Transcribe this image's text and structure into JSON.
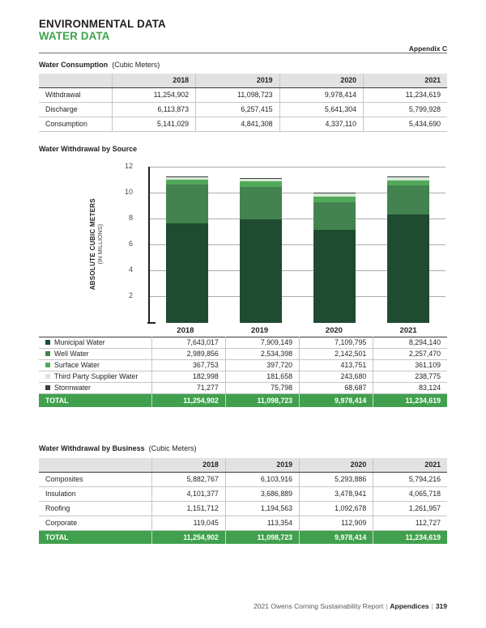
{
  "header": {
    "line1": "ENVIRONMENTAL DATA",
    "line2": "WATER DATA",
    "appendix": "Appendix C"
  },
  "colors": {
    "accent_green": "#3fa24c",
    "total_row_green": "#41a04e",
    "header_row_gray": "#e2e2e2",
    "grid_gray": "#aaadb0",
    "text_dark": "#231f20"
  },
  "consumption": {
    "title": "Water Consumption",
    "unit": "(Cubic Meters)",
    "years": [
      "2018",
      "2019",
      "2020",
      "2021"
    ],
    "rows": [
      {
        "label": "Withdrawal",
        "values": [
          "11,254,902",
          "11,098,723",
          "9,978,414",
          "11,234,619"
        ]
      },
      {
        "label": "Discharge",
        "values": [
          "6,113,873",
          "6,257,415",
          "5,641,304",
          "5,799,928"
        ]
      },
      {
        "label": "Consumption",
        "values": [
          "5,141,029",
          "4,841,308",
          "4,337,110",
          "5,434,690"
        ]
      }
    ]
  },
  "source": {
    "title": "Water Withdrawal by Source",
    "rows": [
      {
        "label": "Municipal Water",
        "values": [
          "7,643,017",
          "7,909,149",
          "7,109,795",
          "8,294,140"
        ]
      },
      {
        "label": "Well Water",
        "values": [
          "2,989,856",
          "2,534,398",
          "2,142,501",
          "2,257,470"
        ]
      },
      {
        "label": "Surface Water",
        "values": [
          "367,753",
          "397,720",
          "413,751",
          "361,109"
        ]
      },
      {
        "label": "Third Party Supplier Water",
        "values": [
          "182,998",
          "181,658",
          "243,680",
          "238,775"
        ]
      },
      {
        "label": "Stormwater",
        "values": [
          "71,277",
          "75,798",
          "68,687",
          "83,124"
        ]
      }
    ],
    "total": {
      "label": "TOTAL",
      "values": [
        "11,254,902",
        "11,098,723",
        "9,978,414",
        "11,234,619"
      ]
    }
  },
  "chart_data": {
    "type": "bar",
    "stacked": true,
    "title": "Water Withdrawal by Source",
    "categories": [
      "2018",
      "2019",
      "2020",
      "2021"
    ],
    "series": [
      {
        "name": "Municipal Water",
        "color": "#1f4c31",
        "values": [
          7643017,
          7909149,
          7109795,
          8294140
        ]
      },
      {
        "name": "Well Water",
        "color": "#43834f",
        "values": [
          2989856,
          2534398,
          2142501,
          2257470
        ]
      },
      {
        "name": "Surface Water",
        "color": "#52a95a",
        "values": [
          367753,
          397720,
          413751,
          361109
        ]
      },
      {
        "name": "Third Party Supplier Water",
        "color": "#d8e8d6",
        "values": [
          182998,
          181658,
          243680,
          238775
        ]
      },
      {
        "name": "Stormwater",
        "color": "#3b403c",
        "values": [
          71277,
          75798,
          68687,
          83124
        ]
      }
    ],
    "totals": [
      11254902,
      11098723,
      9978414,
      11234619
    ],
    "ylabel": "ABSOLUTE CUBIC METERS",
    "ylabel_sub": "(IN MILLIONS)",
    "yticks": [
      2,
      4,
      6,
      8,
      10,
      12
    ],
    "ylim": [
      0,
      12
    ],
    "value_scale": "millions",
    "grid": true,
    "legend_position": "table-below"
  },
  "business": {
    "title": "Water Withdrawal by Business",
    "unit": "(Cubic Meters)",
    "years": [
      "2018",
      "2019",
      "2020",
      "2021"
    ],
    "rows": [
      {
        "label": "Composites",
        "values": [
          "5,882,767",
          "6,103,916",
          "5,293,886",
          "5,794,216"
        ]
      },
      {
        "label": "Insulation",
        "values": [
          "4,101,377",
          "3,686,889",
          "3,478,941",
          "4,065,718"
        ]
      },
      {
        "label": "Roofing",
        "values": [
          "1,151,712",
          "1,194,563",
          "1,092,678",
          "1,261,957"
        ]
      },
      {
        "label": "Corporate",
        "values": [
          "119,045",
          "113,354",
          "112,909",
          "112,727"
        ]
      }
    ],
    "total": {
      "label": "TOTAL",
      "values": [
        "11,254,902",
        "11,098,723",
        "9,978,414",
        "11,234,619"
      ]
    }
  },
  "footer": {
    "report": "2021 Owens Corning Sustainability Report",
    "sep": "|",
    "section": "Appendices",
    "page": "319"
  }
}
